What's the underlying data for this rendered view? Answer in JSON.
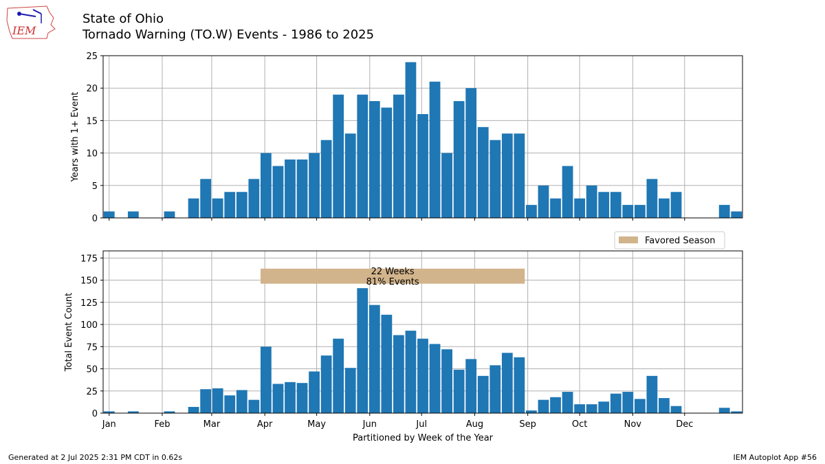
{
  "title_line1": "State of Ohio",
  "title_line2": "Tornado Warning (TO.W) Events - 1986 to 2025",
  "logo_text": "IEM",
  "footer_left": "Generated at 2 Jul 2025 2:31 PM CDT in 0.62s",
  "footer_right": "IEM Autoplot App #56",
  "colors": {
    "bar": "#1f77b4",
    "season": "#d2b48c",
    "grid": "#b0b0b0"
  },
  "chart_data": [
    {
      "type": "bar",
      "ylabel": "Years with 1+ Event",
      "xlabel": "",
      "ylim": [
        0,
        25
      ],
      "yticks": [
        0,
        5,
        10,
        15,
        20,
        25
      ],
      "grid": true,
      "weeks": [
        1,
        2,
        3,
        4,
        5,
        6,
        7,
        8,
        9,
        10,
        11,
        12,
        13,
        14,
        15,
        16,
        17,
        18,
        19,
        20,
        21,
        22,
        23,
        24,
        25,
        26,
        27,
        28,
        29,
        30,
        31,
        32,
        33,
        34,
        35,
        36,
        37,
        38,
        39,
        40,
        41,
        42,
        43,
        44,
        45,
        46,
        47,
        48,
        49,
        50,
        51,
        52,
        53
      ],
      "values": [
        1,
        0,
        1,
        0,
        0,
        1,
        0,
        3,
        6,
        3,
        4,
        4,
        6,
        10,
        8,
        9,
        9,
        10,
        12,
        19,
        13,
        19,
        18,
        17,
        19,
        24,
        16,
        21,
        10,
        18,
        20,
        14,
        12,
        13,
        13,
        2,
        5,
        3,
        8,
        3,
        5,
        4,
        4,
        2,
        2,
        6,
        3,
        4,
        0,
        0,
        0,
        2,
        1
      ]
    },
    {
      "type": "bar",
      "ylabel": "Total Event Count",
      "xlabel": "Partitioned by Week of the Year",
      "ylim": [
        0,
        183
      ],
      "yticks": [
        0,
        25,
        50,
        75,
        100,
        125,
        150,
        175
      ],
      "grid": true,
      "weeks": [
        1,
        2,
        3,
        4,
        5,
        6,
        7,
        8,
        9,
        10,
        11,
        12,
        13,
        14,
        15,
        16,
        17,
        18,
        19,
        20,
        21,
        22,
        23,
        24,
        25,
        26,
        27,
        28,
        29,
        30,
        31,
        32,
        33,
        34,
        35,
        36,
        37,
        38,
        39,
        40,
        41,
        42,
        43,
        44,
        45,
        46,
        47,
        48,
        49,
        50,
        51,
        52,
        53
      ],
      "values": [
        2,
        0,
        2,
        0,
        0,
        2,
        0,
        7,
        27,
        28,
        20,
        26,
        15,
        75,
        33,
        35,
        34,
        47,
        65,
        84,
        51,
        141,
        122,
        111,
        88,
        93,
        84,
        78,
        72,
        49,
        61,
        42,
        54,
        68,
        63,
        3,
        15,
        18,
        24,
        10,
        10,
        13,
        22,
        24,
        16,
        42,
        17,
        8,
        0,
        0,
        0,
        6,
        2
      ],
      "legend": {
        "label": "Favored Season",
        "placement": "upper-right"
      },
      "favored_season": {
        "start_week": 14,
        "end_week": 35,
        "ymin": 146,
        "ymax": 163,
        "label_line1": "22 Weeks",
        "label_line2": "81% Events"
      }
    }
  ],
  "months": [
    {
      "label": "Jan",
      "week": 1.0
    },
    {
      "label": "Feb",
      "week": 5.4
    },
    {
      "label": "Mar",
      "week": 9.5
    },
    {
      "label": "Apr",
      "week": 13.9
    },
    {
      "label": "May",
      "week": 18.2
    },
    {
      "label": "Jun",
      "week": 22.6
    },
    {
      "label": "Jul",
      "week": 26.9
    },
    {
      "label": "Aug",
      "week": 31.3
    },
    {
      "label": "Sep",
      "week": 35.7
    },
    {
      "label": "Oct",
      "week": 40.0
    },
    {
      "label": "Nov",
      "week": 44.4
    },
    {
      "label": "Dec",
      "week": 48.7
    }
  ]
}
